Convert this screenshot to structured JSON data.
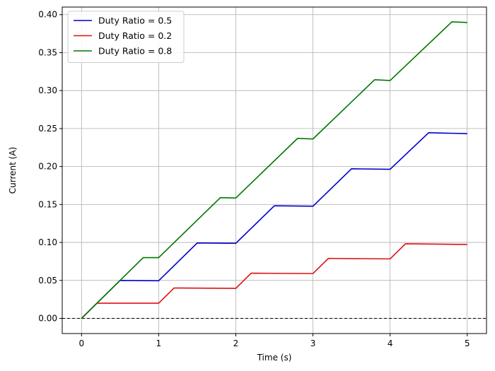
{
  "chart_data": {
    "type": "line",
    "xlabel": "Time (s)",
    "ylabel": "Current (A)",
    "xlim": [
      -0.25,
      5.25
    ],
    "ylim": [
      -0.02,
      0.41
    ],
    "xticks": [
      0,
      1,
      2,
      3,
      4,
      5
    ],
    "xtick_labels": [
      "0",
      "1",
      "2",
      "3",
      "4",
      "5"
    ],
    "yticks": [
      0.0,
      0.05,
      0.1,
      0.15,
      0.2,
      0.25,
      0.3,
      0.35,
      0.4
    ],
    "ytick_labels": [
      "0.00",
      "0.05",
      "0.10",
      "0.15",
      "0.20",
      "0.25",
      "0.30",
      "0.35",
      "0.40"
    ],
    "grid": true,
    "legend_position": "top-left",
    "reference_line": {
      "y": 0,
      "style": "dashed",
      "color": "#000000"
    },
    "series": [
      {
        "name": "Duty Ratio = 0.5",
        "color": "#0000cc",
        "x": [
          0,
          0.5,
          1.0,
          1.5,
          2.0,
          2.5,
          3.0,
          3.5,
          4.0,
          4.5,
          5.0
        ],
        "y": [
          0,
          0.05,
          0.0495,
          0.0993,
          0.0988,
          0.1483,
          0.1477,
          0.197,
          0.1963,
          0.2445,
          0.2433
        ]
      },
      {
        "name": "Duty Ratio = 0.2",
        "color": "#dd1111",
        "x": [
          0,
          0.2,
          1.0,
          1.2,
          2.0,
          2.2,
          3.0,
          3.2,
          4.0,
          4.2,
          5.0
        ],
        "y": [
          0,
          0.02,
          0.02,
          0.04,
          0.0395,
          0.0595,
          0.059,
          0.079,
          0.0783,
          0.0983,
          0.0973
        ]
      },
      {
        "name": "Duty Ratio = 0.8",
        "color": "#007700",
        "x": [
          0,
          0.8,
          1.0,
          1.8,
          2.0,
          2.8,
          3.0,
          3.8,
          4.0,
          4.8,
          5.0
        ],
        "y": [
          0,
          0.08,
          0.08,
          0.159,
          0.1585,
          0.237,
          0.2363,
          0.3143,
          0.3133,
          0.3905,
          0.3897
        ]
      }
    ]
  }
}
